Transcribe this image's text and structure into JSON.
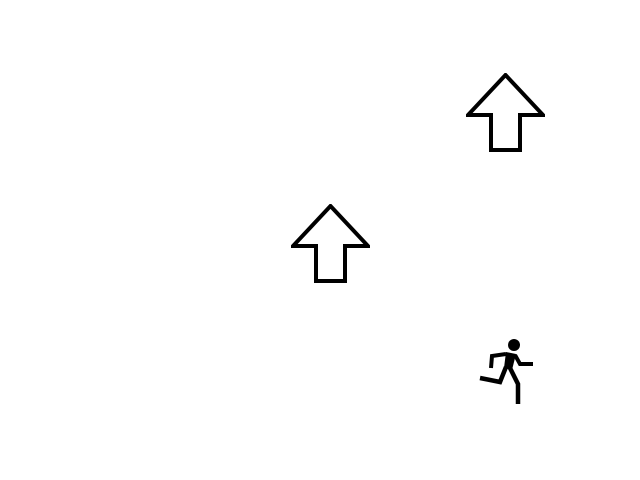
{
  "scene": {
    "background_color": "#ffffff",
    "stroke_color": "#000000",
    "items": [
      {
        "icon": "up-arrow-outline-icon"
      },
      {
        "icon": "up-arrow-outline-icon"
      },
      {
        "icon": "running-person-icon"
      }
    ]
  }
}
